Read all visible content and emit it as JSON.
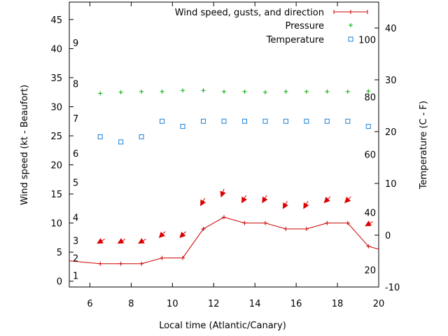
{
  "chart_data": {
    "type": "line",
    "xlabel": "Local time (Atlantic/Canary)",
    "ylabel_left": "Wind speed (kt - Beaufort)",
    "ylabel_right": "Temperature (C - F)",
    "x_range": [
      5,
      20
    ],
    "y_left_range": [
      -1,
      48
    ],
    "y_right_range": [
      -10,
      45
    ],
    "x_ticks": [
      6,
      8,
      10,
      12,
      14,
      16,
      18,
      20
    ],
    "y_left_ticks": [
      0,
      5,
      10,
      15,
      20,
      25,
      30,
      35,
      40,
      45
    ],
    "y_right_ticks": [
      -10,
      0,
      10,
      20,
      30,
      40
    ],
    "beaufort_labels": [
      {
        "label": "1",
        "value": 1
      },
      {
        "label": "2",
        "value": 4
      },
      {
        "label": "3",
        "value": 7
      },
      {
        "label": "4",
        "value": 11
      },
      {
        "label": "5",
        "value": 17
      },
      {
        "label": "6",
        "value": 22
      },
      {
        "label": "7",
        "value": 28
      },
      {
        "label": "8",
        "value": 34
      },
      {
        "label": "9",
        "value": 41
      }
    ],
    "fahrenheit_labels": [
      {
        "label": "20",
        "value": -6.7
      },
      {
        "label": "40",
        "value": 4.4
      },
      {
        "label": "60",
        "value": 15.6
      },
      {
        "label": "80",
        "value": 26.7
      },
      {
        "label": "100",
        "value": 37.8
      }
    ],
    "legend_placement": "top-right",
    "series": [
      {
        "name": "Wind speed, gusts, and direction",
        "color": "#cc0000",
        "x": [
          5.0,
          6.5,
          7.5,
          8.5,
          9.5,
          10.5,
          11.5,
          12.5,
          13.5,
          14.5,
          15.5,
          16.5,
          17.5,
          18.5,
          19.5,
          20.0
        ],
        "y": [
          3.5,
          3,
          3,
          3,
          4,
          4,
          9,
          11,
          10,
          10,
          9,
          9,
          10,
          10,
          6,
          5.5
        ]
      },
      {
        "name": "Pressure",
        "color": "#00aa00",
        "x": [
          6.5,
          7.5,
          8.5,
          9.5,
          10.5,
          11.5,
          12.5,
          13.5,
          14.5,
          15.5,
          16.5,
          17.5,
          18.5,
          19.5
        ],
        "y": [
          32.3,
          32.5,
          32.6,
          32.6,
          32.8,
          32.8,
          32.6,
          32.6,
          32.5,
          32.6,
          32.6,
          32.6,
          32.6,
          32.7
        ]
      },
      {
        "name": "Temperature",
        "color": "#1a7fd4",
        "axis": "right",
        "x": [
          6.5,
          7.5,
          8.5,
          9.5,
          10.5,
          11.5,
          12.5,
          13.5,
          14.5,
          15.5,
          16.5,
          17.5,
          18.5,
          19.5
        ],
        "y": [
          19,
          18,
          19,
          22,
          21,
          22,
          22,
          22,
          22,
          22,
          22,
          22,
          22,
          21
        ]
      }
    ],
    "wind_arrows": {
      "color": "#dd0000",
      "x": [
        6.5,
        7.5,
        8.5,
        9.5,
        10.5,
        11.5,
        12.5,
        13.5,
        14.5,
        15.5,
        16.5,
        17.5,
        18.5,
        19.5
      ],
      "y": [
        7,
        7,
        7,
        8,
        8,
        13.5,
        15,
        14,
        14,
        13,
        13,
        14,
        14,
        10
      ],
      "direction_deg": [
        30,
        30,
        30,
        45,
        45,
        60,
        70,
        60,
        60,
        60,
        60,
        45,
        45,
        30
      ]
    }
  }
}
